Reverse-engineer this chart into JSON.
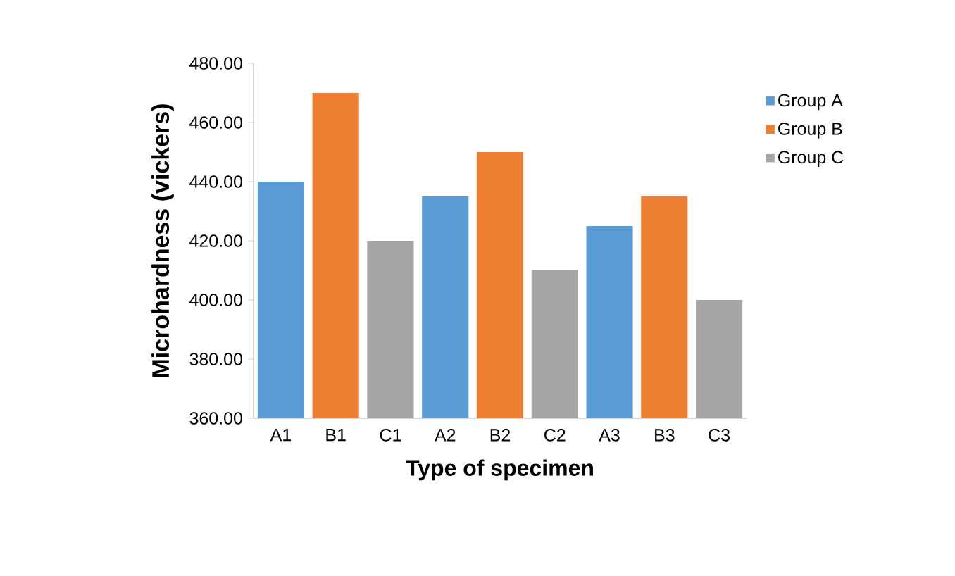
{
  "chart_data": {
    "type": "bar",
    "xlabel": "Type of specimen",
    "ylabel": "Microhardness (vickers)",
    "categories": [
      "A1",
      "B1",
      "C1",
      "A2",
      "B2",
      "C2",
      "A3",
      "B3",
      "C3"
    ],
    "series": [
      {
        "name": "Group A",
        "color": "#5b9bd5",
        "values": [
          440,
          null,
          null,
          435,
          null,
          null,
          425,
          null,
          null
        ]
      },
      {
        "name": "Group B",
        "color": "#ed7d31",
        "values": [
          null,
          470,
          null,
          null,
          450,
          null,
          null,
          435,
          null
        ]
      },
      {
        "name": "Group C",
        "color": "#a5a5a5",
        "values": [
          null,
          null,
          420,
          null,
          null,
          410,
          null,
          null,
          400
        ]
      }
    ],
    "ylim": [
      360,
      480
    ],
    "yticks": [
      {
        "value": 360,
        "label": "360.00"
      },
      {
        "value": 380,
        "label": "380.00"
      },
      {
        "value": 400,
        "label": "400.00"
      },
      {
        "value": 420,
        "label": "420.00"
      },
      {
        "value": 440,
        "label": "440.00"
      },
      {
        "value": 460,
        "label": "460.00"
      },
      {
        "value": 480,
        "label": "480.00"
      }
    ],
    "legend": "right",
    "grid": false
  }
}
